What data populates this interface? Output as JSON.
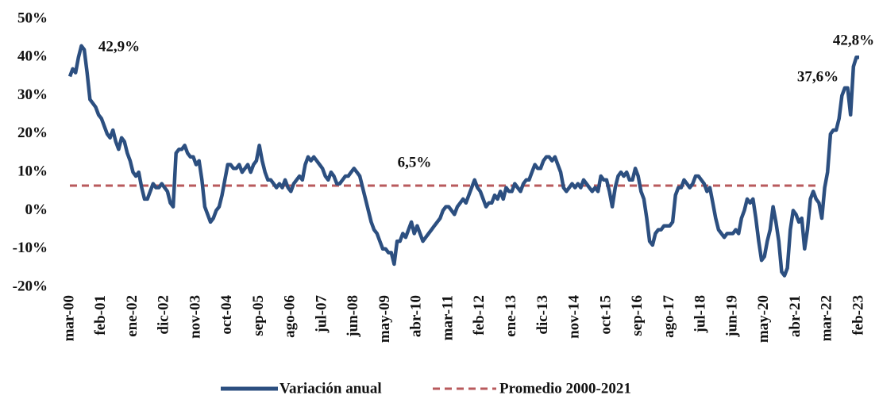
{
  "chart_data": {
    "type": "line",
    "categories": [
      "mar-00",
      null,
      null,
      null,
      null,
      null,
      null,
      null,
      null,
      null,
      null,
      "feb-01",
      null,
      null,
      null,
      null,
      null,
      null,
      null,
      null,
      null,
      null,
      "ene-02",
      null,
      null,
      null,
      null,
      null,
      null,
      null,
      null,
      null,
      null,
      "dic-02",
      null,
      null,
      null,
      null,
      null,
      null,
      null,
      null,
      null,
      null,
      "nov-03",
      null,
      null,
      null,
      null,
      null,
      null,
      null,
      null,
      null,
      null,
      "oct-04",
      null,
      null,
      null,
      null,
      null,
      null,
      null,
      null,
      null,
      null,
      "sep-05",
      null,
      null,
      null,
      null,
      null,
      null,
      null,
      null,
      null,
      null,
      "ago-06",
      null,
      null,
      null,
      null,
      null,
      null,
      null,
      null,
      null,
      null,
      "jul-07",
      null,
      null,
      null,
      null,
      null,
      null,
      null,
      null,
      null,
      null,
      "jun-08",
      null,
      null,
      null,
      null,
      null,
      null,
      null,
      null,
      null,
      null,
      "may-09",
      null,
      null,
      null,
      null,
      null,
      null,
      null,
      null,
      null,
      null,
      "abr-10",
      null,
      null,
      null,
      null,
      null,
      null,
      null,
      null,
      null,
      null,
      "mar-11",
      null,
      null,
      null,
      null,
      null,
      null,
      null,
      null,
      null,
      null,
      "feb-12",
      null,
      null,
      null,
      null,
      null,
      null,
      null,
      null,
      null,
      null,
      "ene-13",
      null,
      null,
      null,
      null,
      null,
      null,
      null,
      null,
      null,
      null,
      "dic-13",
      null,
      null,
      null,
      null,
      null,
      null,
      null,
      null,
      null,
      null,
      "nov-14",
      null,
      null,
      null,
      null,
      null,
      null,
      null,
      null,
      null,
      null,
      "oct-15",
      null,
      null,
      null,
      null,
      null,
      null,
      null,
      null,
      null,
      null,
      "sep-16",
      null,
      null,
      null,
      null,
      null,
      null,
      null,
      null,
      null,
      null,
      "ago-17",
      null,
      null,
      null,
      null,
      null,
      null,
      null,
      null,
      null,
      null,
      "jul-18",
      null,
      null,
      null,
      null,
      null,
      null,
      null,
      null,
      null,
      null,
      "jun-19",
      null,
      null,
      null,
      null,
      null,
      null,
      null,
      null,
      null,
      null,
      "may-20",
      null,
      null,
      null,
      null,
      null,
      null,
      null,
      null,
      null,
      null,
      "abr-21",
      null,
      null,
      null,
      null,
      null,
      null,
      null,
      null,
      null,
      null,
      "mar-22",
      null,
      null,
      null,
      null,
      null,
      null,
      null,
      null,
      null,
      null,
      "feb-23"
    ],
    "series": [
      {
        "name": "Variación anual",
        "color": "#2c4f80",
        "values": [
          35,
          37,
          36,
          40,
          43,
          42,
          36,
          29,
          28,
          27,
          25,
          24,
          22,
          20,
          19,
          21,
          18,
          16,
          19,
          18,
          15,
          13,
          10,
          9,
          10,
          6,
          3,
          3,
          5,
          7,
          6,
          6,
          7,
          6,
          5,
          2,
          1,
          15,
          16,
          16,
          17,
          15,
          14,
          14,
          12,
          13,
          8,
          1,
          -1,
          -3,
          -2,
          0,
          1,
          4,
          8,
          12,
          12,
          11,
          11,
          12,
          10,
          11,
          12,
          10,
          12,
          13,
          17,
          13,
          10,
          8,
          8,
          7,
          6,
          7,
          6,
          8,
          6,
          5,
          7,
          8,
          9,
          8,
          12,
          14,
          13,
          14,
          13,
          12,
          11,
          9,
          8,
          10,
          9,
          7,
          7,
          8,
          9,
          9,
          10,
          11,
          10,
          9,
          6,
          3,
          0,
          -3,
          -5,
          -6,
          -8,
          -10,
          -10,
          -11,
          -11,
          -14,
          -8,
          -8,
          -6,
          -7,
          -5,
          -3,
          -6,
          -4,
          -6,
          -8,
          -7,
          -6,
          -5,
          -4,
          -3,
          -2,
          0,
          1,
          1,
          0,
          -1,
          1,
          2,
          3,
          2,
          4,
          6,
          8,
          6,
          5,
          3,
          1,
          2,
          2,
          4,
          3,
          5,
          3,
          6,
          5,
          5,
          7,
          6,
          5,
          7,
          8,
          8,
          10,
          12,
          11,
          11,
          13,
          14,
          14,
          13,
          14,
          12,
          10,
          6,
          5,
          6,
          7,
          6,
          7,
          6,
          8,
          7,
          6,
          5,
          6,
          5,
          9,
          8,
          8,
          5,
          1,
          6,
          9,
          10,
          9,
          10,
          8,
          8,
          11,
          9,
          5,
          3,
          -2,
          -8,
          -9,
          -6,
          -5,
          -5,
          -4,
          -4,
          -4,
          -3,
          4,
          6,
          6,
          8,
          7,
          6,
          7,
          9,
          9,
          8,
          7,
          5,
          6,
          2,
          -2,
          -5,
          -6,
          -7,
          -6,
          -6,
          -6,
          -5,
          -6,
          -2,
          0,
          3,
          2,
          3,
          -2,
          -8,
          -13,
          -12,
          -8,
          -5,
          1,
          -3,
          -8,
          -16,
          -17,
          -15,
          -5,
          0,
          -1,
          -3,
          -2,
          -10,
          -5,
          3,
          5,
          3,
          2,
          -2,
          6,
          10,
          20,
          21,
          21,
          24,
          30,
          32,
          32,
          25,
          37.6,
          40,
          40
        ]
      }
    ],
    "average_line": {
      "name": "Promedio 2000-2021",
      "value": 6.5,
      "label": "6,5%",
      "color": "#b85a5c",
      "dashed": true
    },
    "annotations": [
      {
        "text": "42,9%"
      },
      {
        "text": "37,6%"
      },
      {
        "text": "42,8%"
      }
    ],
    "ylim": [
      -20,
      50
    ],
    "yticks": [
      {
        "value": -20,
        "label": "-20%"
      },
      {
        "value": -10,
        "label": "-10%"
      },
      {
        "value": 0,
        "label": "0%"
      },
      {
        "value": 10,
        "label": "10%"
      },
      {
        "value": 20,
        "label": "20%"
      },
      {
        "value": 30,
        "label": "30%"
      },
      {
        "value": 40,
        "label": "40%"
      },
      {
        "value": 50,
        "label": "50%"
      }
    ],
    "grid": false
  }
}
